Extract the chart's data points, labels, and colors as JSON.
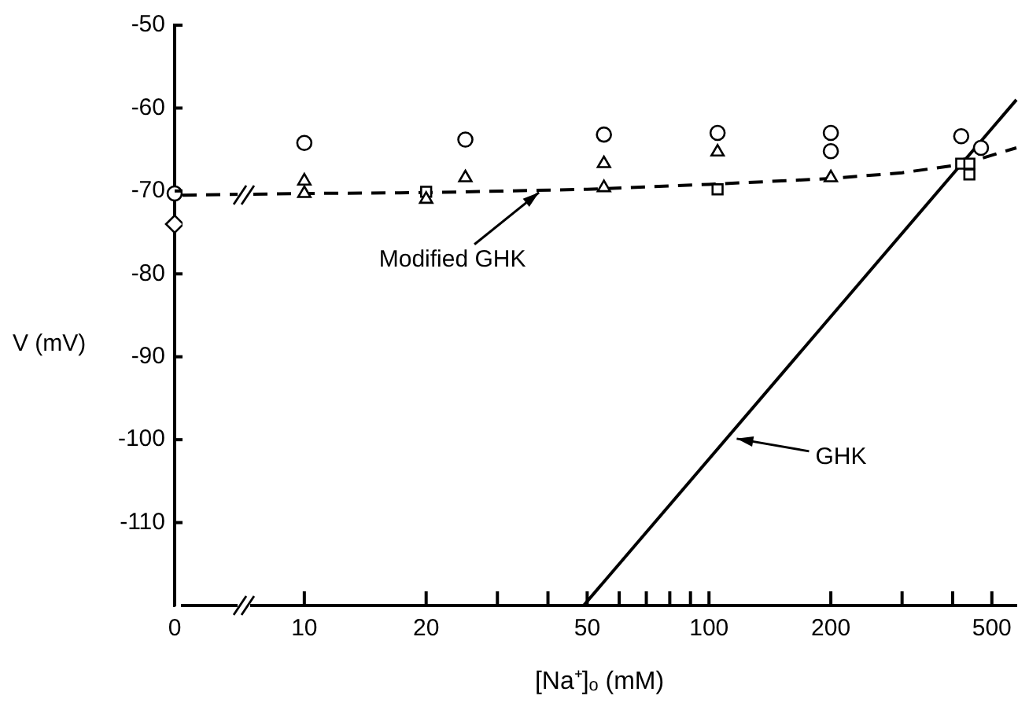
{
  "chart_data": [
    {
      "type": "scatter",
      "ylabel": "V (mV)",
      "categories": [
        "0"
      ],
      "ylim": [
        -120,
        -50
      ],
      "yticks": [
        -50,
        -60,
        -70,
        -80,
        -90,
        -100,
        -110
      ],
      "grid": false,
      "legend": false,
      "series": [
        {
          "type": "scatter",
          "marker": "circle",
          "color": "#000000",
          "x": [
            "0"
          ],
          "values": [
            -70.3
          ]
        },
        {
          "type": "scatter",
          "marker": "diamond",
          "color": "#000000",
          "x": [
            "0"
          ],
          "values": [
            -74
          ]
        }
      ]
    },
    {
      "type": "scatter",
      "xlabel": "[Na⁺]ₒ (mM)",
      "log": "x",
      "xlim": [
        5,
        575
      ],
      "xticks": [
        10,
        20,
        {
          "value": 30,
          "label": null
        },
        {
          "value": 40,
          "label": null
        },
        50,
        {
          "value": 60,
          "label": null
        },
        {
          "value": 70,
          "label": null
        },
        {
          "value": 80,
          "label": null
        },
        {
          "value": 90,
          "label": null
        },
        100,
        200,
        {
          "value": 300,
          "label": null
        },
        {
          "value": 400,
          "label": null
        },
        500
      ],
      "ylim": [
        -120,
        -50
      ],
      "yticks": [
        -50,
        -60,
        -70,
        -80,
        -90,
        -100,
        -110
      ],
      "tick_labels": "x",
      "grid": false,
      "legend": false,
      "series": [
        {
          "type": "scatter",
          "marker": "circle",
          "color": "#000000",
          "x": [
            10,
            25,
            55,
            105,
            200,
            420
          ],
          "values": [
            -64.2,
            -63.8,
            -63.2,
            -63,
            -63,
            -63.4
          ]
        },
        {
          "type": "scatter",
          "marker": "triangle",
          "color": "#000000",
          "x": [
            10,
            25,
            55,
            105
          ],
          "values": [
            -68.8,
            -68.4,
            -66.7,
            -65.3
          ]
        },
        {
          "type": "scatter",
          "marker": "triangle",
          "color": "#000000",
          "x": [
            10,
            20,
            55,
            200
          ],
          "values": [
            -70.3,
            -71,
            -69.6,
            -68.4
          ]
        },
        {
          "type": "scatter",
          "marker": "square",
          "color": "#000000",
          "x": [
            20,
            105,
            440
          ],
          "values": [
            -70.1,
            -69.8,
            -68
          ]
        },
        {
          "type": "scatter",
          "marker": "circle",
          "color": "#000000",
          "x": [
            200,
            470
          ],
          "values": [
            -65.2,
            -64.8
          ]
        },
        {
          "type": "scatter",
          "marker": "square",
          "color": "#000000",
          "x": [
            420,
            440
          ],
          "values": [
            -66.7,
            -66.7
          ]
        },
        {
          "type": "line",
          "marker": "none",
          "line_style": "dashed",
          "color": "#000000",
          "x": [
            5,
            10,
            20,
            50,
            100,
            200,
            300,
            420,
            575
          ],
          "values": [
            -70.5,
            -70.3,
            -70.2,
            -69.8,
            -69.2,
            -68.5,
            -67.8,
            -66.8,
            -64.8
          ]
        },
        {
          "type": "line",
          "marker": "none",
          "line_style": "solid",
          "color": "#000000",
          "x": [
            49,
            575
          ],
          "values": [
            -120,
            -59
          ]
        }
      ],
      "annotations": [
        {
          "text": "Modified GHK",
          "x": 38,
          "y": -69.8
        },
        {
          "text": "GHK",
          "x": 115,
          "y": -99.5
        }
      ]
    }
  ]
}
